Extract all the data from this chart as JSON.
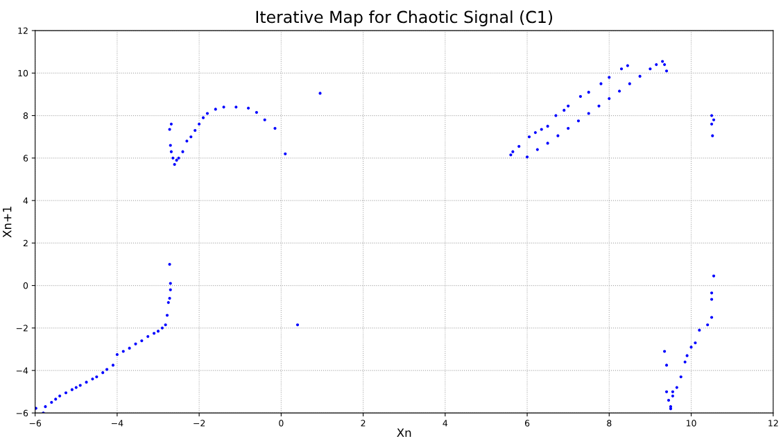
{
  "chart_data": {
    "type": "scatter",
    "title": "Iterative Map for Chaotic Signal (C1)",
    "xlabel": "Xn",
    "ylabel": "Xn+1",
    "xlim": [
      -6,
      12
    ],
    "ylim": [
      -6,
      12
    ],
    "xticks": [
      {
        "value": -6,
        "label": "−6"
      },
      {
        "value": -4,
        "label": "−4"
      },
      {
        "value": -2,
        "label": "−2"
      },
      0,
      2,
      4,
      6,
      8,
      10,
      12
    ],
    "yticks": [
      {
        "value": -6,
        "label": "−6"
      },
      {
        "value": -4,
        "label": "−4"
      },
      {
        "value": -2,
        "label": "−2"
      },
      0,
      2,
      4,
      6,
      8,
      10,
      12
    ],
    "grid": true,
    "marker": "circle",
    "series": [
      {
        "color": "#0000ff",
        "x": [
          -5.98,
          -5.8,
          -5.75,
          -5.6,
          -5.5,
          -5.4,
          -5.25,
          -5.1,
          -5.0,
          -4.9,
          -4.75,
          -4.6,
          -4.5,
          -4.35,
          -4.25,
          -4.1,
          -4.0,
          -3.85,
          -3.7,
          -3.55,
          -3.4,
          -3.25,
          -3.1,
          -3.0,
          -2.9,
          -2.82,
          -2.78,
          -2.75,
          -2.72,
          -2.7,
          -2.7,
          -2.72,
          -2.72,
          -2.68,
          -2.7,
          -2.68,
          -2.64,
          -2.6,
          -2.55,
          -2.5,
          -2.4,
          -2.3,
          -2.2,
          -2.1,
          -2.0,
          -1.9,
          -1.8,
          -1.6,
          -1.4,
          -1.1,
          -0.8,
          -0.6,
          -0.4,
          -0.15,
          0.1,
          0.95,
          0.4,
          5.6,
          5.65,
          5.8,
          6.05,
          6.2,
          6.35,
          6.5,
          6.7,
          6.9,
          7.0,
          7.3,
          7.5,
          7.8,
          8.0,
          8.3,
          8.45,
          6.0,
          6.25,
          6.5,
          6.75,
          7.0,
          7.25,
          7.5,
          7.75,
          8.0,
          8.25,
          8.5,
          8.75,
          9.0,
          9.15,
          9.3,
          9.35,
          9.4,
          10.5,
          10.55,
          10.5,
          10.52,
          10.55,
          10.5,
          10.5,
          10.5,
          10.4,
          10.2,
          10.1,
          10.0,
          9.9,
          9.85,
          9.75,
          9.65,
          9.55,
          9.5,
          9.45,
          9.4,
          9.35,
          9.4,
          9.55,
          9.5
        ],
        "values": [
          -5.78,
          -6.0,
          -5.7,
          -5.5,
          -5.35,
          -5.2,
          -5.05,
          -4.9,
          -4.8,
          -4.7,
          -4.55,
          -4.4,
          -4.3,
          -4.1,
          -3.95,
          -3.75,
          -3.25,
          -3.1,
          -2.95,
          -2.75,
          -2.6,
          -2.4,
          -2.25,
          -2.15,
          -2.0,
          -1.85,
          -1.4,
          -0.8,
          -0.6,
          0.1,
          -0.2,
          1.0,
          7.35,
          7.6,
          6.6,
          6.3,
          6.0,
          5.7,
          5.9,
          6.0,
          6.3,
          6.8,
          7.0,
          7.3,
          7.6,
          7.9,
          8.1,
          8.3,
          8.4,
          8.4,
          8.35,
          8.15,
          7.8,
          7.4,
          6.2,
          9.05,
          -1.85,
          6.15,
          6.3,
          6.55,
          7.0,
          7.2,
          7.35,
          7.5,
          8.0,
          8.25,
          8.45,
          8.9,
          9.1,
          9.5,
          9.8,
          10.2,
          10.35,
          6.05,
          6.4,
          6.7,
          7.05,
          7.4,
          7.75,
          8.1,
          8.45,
          8.8,
          9.15,
          9.5,
          9.85,
          10.2,
          10.4,
          10.55,
          10.4,
          10.1,
          8.0,
          7.8,
          7.6,
          7.05,
          0.45,
          -0.35,
          -0.65,
          -1.5,
          -1.85,
          -2.1,
          -2.7,
          -2.9,
          -3.3,
          -3.6,
          -4.3,
          -4.8,
          -5.2,
          -5.7,
          -5.4,
          -5.0,
          -3.1,
          -3.75,
          -5.0,
          -5.8
        ]
      }
    ]
  }
}
